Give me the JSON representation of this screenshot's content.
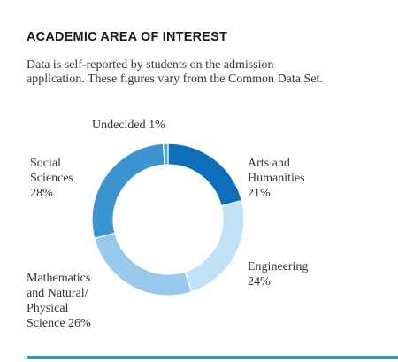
{
  "header": {
    "title": "ACADEMIC AREA OF INTEREST",
    "subtitle_line1": "Data is self-reported by students on the admission",
    "subtitle_line2": "application. These figures vary from the Common Data Set."
  },
  "colors": {
    "accent": "#3b93d0",
    "text": "#333333"
  },
  "chart_data": {
    "type": "pie",
    "variant": "donut",
    "title": "",
    "slices": [
      {
        "label": "Arts and Humanities",
        "value": 21,
        "color": "#0d6fba",
        "label_lines": [
          "Arts and",
          "Humanities",
          "21%"
        ]
      },
      {
        "label": "Engineering",
        "value": 24,
        "color": "#bfe2f7",
        "label_lines": [
          "Engineering",
          "24%"
        ]
      },
      {
        "label": "Mathematics and Natural/Physical Science",
        "value": 26,
        "color": "#98c9ec",
        "label_lines": [
          "Mathematics",
          "and Natural/",
          "Physical",
          "Science 26%"
        ]
      },
      {
        "label": "Social Sciences",
        "value": 28,
        "color": "#3b93d0",
        "label_lines": [
          "Social",
          "Sciences",
          "28%"
        ]
      },
      {
        "label": "Undecided",
        "value": 1,
        "color": "#46b3c8",
        "label_lines": [
          "Undecided 1%"
        ]
      }
    ]
  }
}
